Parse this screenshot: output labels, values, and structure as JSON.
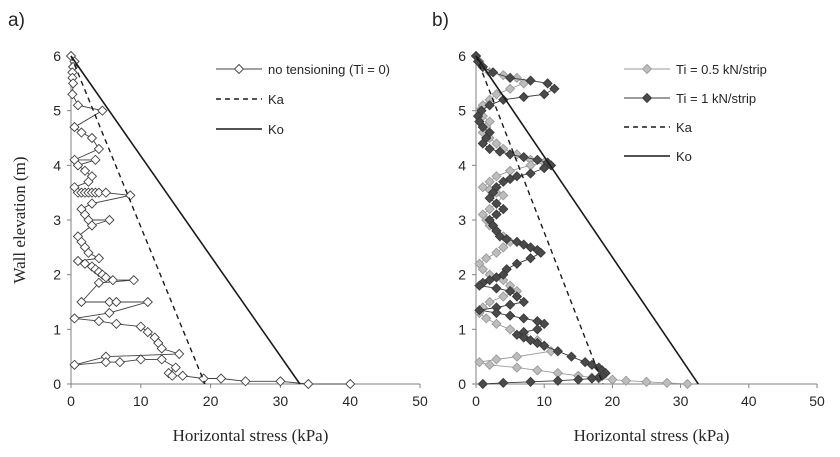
{
  "figure": {
    "panels": [
      "a)",
      "b)"
    ]
  },
  "chart_data": [
    {
      "type": "scatter",
      "panel_label": "a)",
      "xlabel": "Horizontal stress (kPa)",
      "ylabel": "Wall elevation (m)",
      "xlim": [
        0,
        50
      ],
      "ylim": [
        0,
        6
      ],
      "xticks": [
        "0",
        "10",
        "20",
        "30",
        "40",
        "50"
      ],
      "yticks": [
        "0",
        "1",
        "2",
        "3",
        "4",
        "5",
        "6"
      ],
      "legend_position": "top-right",
      "series": [
        {
          "name": "no tensioning (Ti = 0)",
          "style": "line-marker",
          "marker": "diamond-open",
          "color": "#404040",
          "fill": "#ffffff",
          "x": [
            0,
            0.5,
            0.3,
            0.2,
            0.2,
            0.3,
            0.2,
            1.0,
            4.5,
            0.5,
            1.5,
            3.0,
            4.0,
            0.5,
            3.5,
            1.0,
            2.0,
            3.0,
            2.5,
            0.5,
            1.0,
            1.5,
            2.0,
            2.5,
            3.0,
            3.5,
            4.0,
            5.0,
            8.5,
            3.0,
            1.5,
            2.0,
            2.5,
            5.5,
            3.0,
            1.0,
            1.5,
            2.0,
            2.5,
            4.0,
            1.0,
            2.0,
            3.0,
            3.5,
            4.0,
            4.5,
            5.0,
            6.0,
            9.0,
            4.0,
            1.5,
            5.5,
            6.5,
            11.0,
            5.5,
            0.5,
            4.0,
            6.5,
            10.0,
            11.0,
            12.0,
            12.5,
            13.0,
            15.5,
            5.0,
            0.5,
            5.0,
            7.0,
            10.0,
            13.0,
            15.0,
            14.0,
            14.5,
            16.0,
            19.0,
            21.5,
            25.0,
            30.0,
            34.0,
            40.0
          ],
          "y": [
            6.0,
            5.9,
            5.8,
            5.7,
            5.6,
            5.5,
            5.3,
            5.1,
            5.0,
            4.7,
            4.6,
            4.5,
            4.3,
            4.1,
            4.1,
            4.0,
            3.9,
            3.8,
            3.7,
            3.6,
            3.5,
            3.5,
            3.5,
            3.5,
            3.5,
            3.5,
            3.5,
            3.5,
            3.45,
            3.3,
            3.2,
            3.1,
            3.0,
            3.0,
            2.9,
            2.7,
            2.6,
            2.5,
            2.4,
            2.3,
            2.25,
            2.2,
            2.15,
            2.1,
            2.05,
            2.0,
            1.95,
            1.9,
            1.9,
            1.85,
            1.5,
            1.5,
            1.5,
            1.5,
            1.3,
            1.2,
            1.15,
            1.1,
            1.05,
            0.95,
            0.85,
            0.75,
            0.65,
            0.55,
            0.5,
            0.35,
            0.4,
            0.4,
            0.45,
            0.45,
            0.3,
            0.2,
            0.15,
            0.15,
            0.1,
            0.1,
            0.05,
            0.05,
            0.0,
            0.0
          ]
        },
        {
          "name": "Ka",
          "style": "dashed",
          "color": "#1a1a1a",
          "x": [
            0,
            19.2
          ],
          "y": [
            6,
            0
          ]
        },
        {
          "name": "Ko",
          "style": "solid",
          "color": "#1a1a1a",
          "x": [
            0,
            32.8
          ],
          "y": [
            6,
            0
          ]
        }
      ]
    },
    {
      "type": "scatter",
      "panel_label": "b)",
      "xlabel": "Horizontal stress (kPa)",
      "ylabel": "",
      "xlim": [
        0,
        50
      ],
      "ylim": [
        0,
        6
      ],
      "xticks": [
        "0",
        "10",
        "20",
        "30",
        "40",
        "50"
      ],
      "yticks": [
        "0",
        "1",
        "2",
        "3",
        "4",
        "5",
        "6"
      ],
      "legend_position": "top-right",
      "series": [
        {
          "name": "Ti = 0.5 kN/strip",
          "style": "line-marker",
          "marker": "diamond-filled",
          "color": "#9a9a9a",
          "fill": "#bdbdbd",
          "x": [
            0,
            0.5,
            1.0,
            2.0,
            4.0,
            6.0,
            7.0,
            5.0,
            3.0,
            2.0,
            1.0,
            0.5,
            1.0,
            2.0,
            1.5,
            1.0,
            2.0,
            3.0,
            4.0,
            6.0,
            8.0,
            10.0,
            8.0,
            5.0,
            3.0,
            2.0,
            1.0,
            2.0,
            3.0,
            4.0,
            3.0,
            2.0,
            1.0,
            1.5,
            2.0,
            3.0,
            4.0,
            5.0,
            4.0,
            3.0,
            1.5,
            0.5,
            1.0,
            2.0,
            3.0,
            4.0,
            5.0,
            6.0,
            4.0,
            2.0,
            1.0,
            0.5,
            1.5,
            3.0,
            5.0,
            7.0,
            9.0,
            10.0,
            11.0,
            6.0,
            3.0,
            0.5,
            2.0,
            6.0,
            9.0,
            12.0,
            15.0,
            17.0,
            18.0,
            20.0,
            22.0,
            25.0,
            28.0,
            31.0
          ],
          "y": [
            6.0,
            5.9,
            5.8,
            5.7,
            5.65,
            5.6,
            5.5,
            5.4,
            5.3,
            5.2,
            5.1,
            5.0,
            4.9,
            4.8,
            4.7,
            4.6,
            4.5,
            4.4,
            4.3,
            4.2,
            4.1,
            4.05,
            4.0,
            3.9,
            3.8,
            3.7,
            3.6,
            3.55,
            3.5,
            3.45,
            3.3,
            3.2,
            3.1,
            3.0,
            2.9,
            2.8,
            2.7,
            2.6,
            2.5,
            2.4,
            2.3,
            2.2,
            2.1,
            2.0,
            1.95,
            1.9,
            1.8,
            1.7,
            1.6,
            1.5,
            1.4,
            1.3,
            1.2,
            1.1,
            1.0,
            0.9,
            0.8,
            0.7,
            0.6,
            0.5,
            0.45,
            0.4,
            0.35,
            0.3,
            0.25,
            0.2,
            0.15,
            0.12,
            0.1,
            0.08,
            0.06,
            0.04,
            0.02,
            0.0
          ]
        },
        {
          "name": "Ti = 1 kN/strip",
          "style": "line-marker",
          "marker": "diamond-filled",
          "color": "#3a3a3a",
          "fill": "#4a4a4a",
          "x": [
            0,
            0.3,
            1.0,
            2.5,
            5.0,
            8.0,
            10.5,
            11.5,
            10.0,
            7.0,
            4.0,
            2.0,
            0.8,
            0.3,
            0.5,
            1.0,
            2.0,
            1.5,
            1.0,
            2.0,
            3.5,
            5.0,
            7.0,
            9.0,
            10.5,
            11.0,
            10.0,
            8.0,
            6.0,
            5.0,
            4.0,
            3.0,
            2.5,
            2.0,
            3.0,
            4.0,
            3.0,
            2.0,
            2.5,
            3.0,
            3.5,
            4.5,
            6.0,
            7.0,
            8.0,
            9.0,
            9.5,
            8.0,
            6.0,
            4.5,
            4.0,
            3.0,
            2.0,
            1.0,
            0.5,
            3.0,
            5.0,
            6.0,
            7.0,
            5.0,
            3.0,
            0.5,
            3.0,
            5.0,
            7.0,
            9.0,
            10.0,
            9.0,
            7.0,
            6.0,
            7.0,
            8.0,
            9.0,
            10.0,
            12.0,
            14.0,
            16.0,
            17.0,
            18.0,
            18.5,
            19.0,
            18.5,
            18.0,
            17.0,
            15.0,
            12.0,
            8.0,
            4.0,
            1.0
          ],
          "y": [
            6.0,
            5.9,
            5.8,
            5.7,
            5.6,
            5.55,
            5.5,
            5.4,
            5.3,
            5.25,
            5.2,
            5.1,
            5.0,
            4.9,
            4.8,
            4.7,
            4.6,
            4.5,
            4.4,
            4.3,
            4.25,
            4.2,
            4.15,
            4.1,
            4.05,
            4.0,
            3.95,
            3.85,
            3.8,
            3.75,
            3.7,
            3.6,
            3.5,
            3.4,
            3.3,
            3.2,
            3.1,
            3.0,
            2.9,
            2.8,
            2.7,
            2.65,
            2.6,
            2.55,
            2.5,
            2.45,
            2.4,
            2.3,
            2.2,
            2.1,
            2.0,
            1.95,
            1.9,
            1.85,
            1.8,
            1.75,
            1.7,
            1.6,
            1.5,
            1.45,
            1.4,
            1.35,
            1.3,
            1.25,
            1.2,
            1.15,
            1.1,
            1.0,
            0.95,
            0.9,
            0.85,
            0.8,
            0.75,
            0.7,
            0.6,
            0.5,
            0.4,
            0.35,
            0.3,
            0.25,
            0.2,
            0.15,
            0.12,
            0.1,
            0.08,
            0.06,
            0.04,
            0.02,
            0.0
          ]
        },
        {
          "name": "Ka",
          "style": "dashed",
          "color": "#1a1a1a",
          "x": [
            0,
            18.6
          ],
          "y": [
            6,
            0
          ]
        },
        {
          "name": "Ko",
          "style": "solid",
          "color": "#1a1a1a",
          "x": [
            0,
            32.6
          ],
          "y": [
            6,
            0
          ]
        }
      ]
    }
  ]
}
